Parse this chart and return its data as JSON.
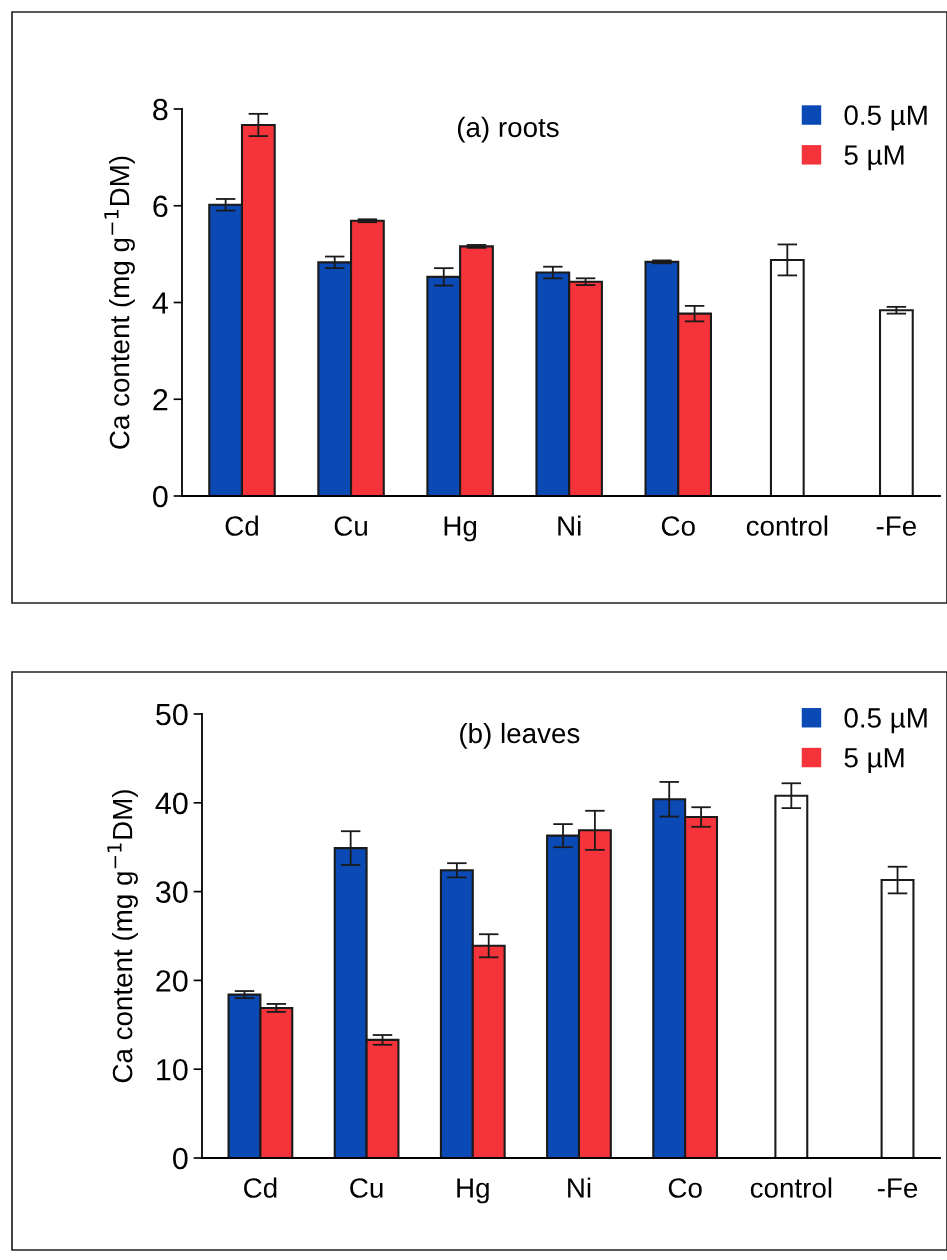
{
  "chart_data": [
    {
      "type": "bar",
      "title": "(a) roots",
      "ylabel": "Ca content (mg g$^{−1}$DM)",
      "categories": [
        "Cd",
        "Cu",
        "Hg",
        "Ni",
        "Co",
        "control",
        "-Fe"
      ],
      "ylim": [
        0,
        8
      ],
      "yticks": [
        0,
        2,
        4,
        6,
        8
      ],
      "grid": false,
      "legend": "top right",
      "series": [
        {
          "name": "0.5 µM",
          "color": "#0b4ab5",
          "values": [
            6.02,
            4.83,
            4.53,
            4.62,
            4.84,
            null,
            null
          ],
          "errors": [
            0.12,
            0.12,
            0.18,
            0.12,
            0.03,
            null,
            null
          ]
        },
        {
          "name": "5 µM",
          "color": "#f5333a",
          "values": [
            7.67,
            5.69,
            5.16,
            4.43,
            3.77,
            null,
            null
          ],
          "errors": [
            0.23,
            0.03,
            0.03,
            0.07,
            0.16,
            null,
            null
          ]
        },
        {
          "color": "#ffffff",
          "values": [
            null,
            null,
            null,
            null,
            null,
            4.88,
            3.84
          ],
          "errors": [
            null,
            null,
            null,
            null,
            null,
            0.32,
            0.07
          ]
        }
      ]
    },
    {
      "type": "bar",
      "title": "(b) leaves",
      "ylabel": "Ca content (mg g$^{−1}$DM)",
      "categories": [
        "Cd",
        "Cu",
        "Hg",
        "Ni",
        "Co",
        "control",
        "-Fe"
      ],
      "ylim": [
        0,
        50
      ],
      "yticks": [
        0,
        10,
        20,
        30,
        40,
        50
      ],
      "grid": false,
      "legend": "top right",
      "series": [
        {
          "name": "0.5 µM",
          "color": "#0b4ab5",
          "values": [
            18.4,
            34.9,
            32.4,
            36.3,
            40.4,
            null,
            null
          ],
          "errors": [
            0.4,
            1.9,
            0.8,
            1.3,
            1.95,
            null,
            null
          ]
        },
        {
          "name": "5 µM",
          "color": "#f5333a",
          "values": [
            16.9,
            13.3,
            23.9,
            36.9,
            38.4,
            null,
            null
          ],
          "errors": [
            0.45,
            0.55,
            1.3,
            2.2,
            1.1,
            null,
            null
          ]
        },
        {
          "color": "#ffffff",
          "values": [
            null,
            null,
            null,
            null,
            null,
            40.8,
            31.3
          ],
          "errors": [
            null,
            null,
            null,
            null,
            null,
            1.4,
            1.5
          ]
        }
      ]
    }
  ]
}
